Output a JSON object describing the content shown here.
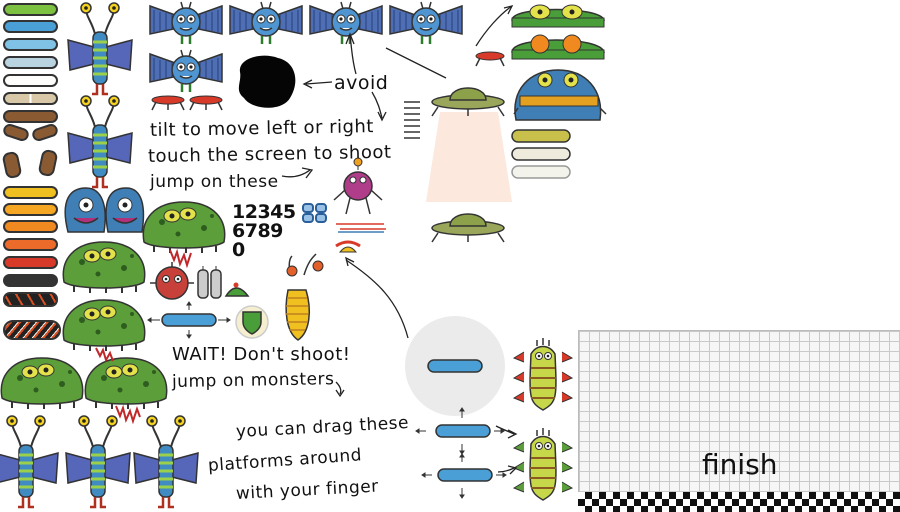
{
  "instructions": {
    "avoid": "avoid",
    "tilt": "tilt to move left or right",
    "touch": "touch the screen to shoot",
    "jump_on_these": "jump on these",
    "wait": "WAIT! Don't shoot!",
    "jump_on_monsters": "jump on monsters",
    "drag_line1": "you can drag these",
    "drag_line2": "platforms around",
    "drag_line3": "with your finger"
  },
  "digits": {
    "row1": "12345",
    "row2": "6789",
    "row3": "0"
  },
  "finish": {
    "label": "finish"
  },
  "colors": {
    "platform_green": "#7cc13f",
    "platform_blue": "#4a9fd6",
    "platform_white": "#f3f3ec",
    "platform_brown": "#8a5a33",
    "platform_yellow": "#f0c020",
    "platform_orange": "#f08a20",
    "platform_red": "#d83a2a",
    "monster_green": "#5c9e3a",
    "monster_blue": "#3f7fb5",
    "ufo_green": "#8a9a4a",
    "beam": "#fce8dc"
  }
}
